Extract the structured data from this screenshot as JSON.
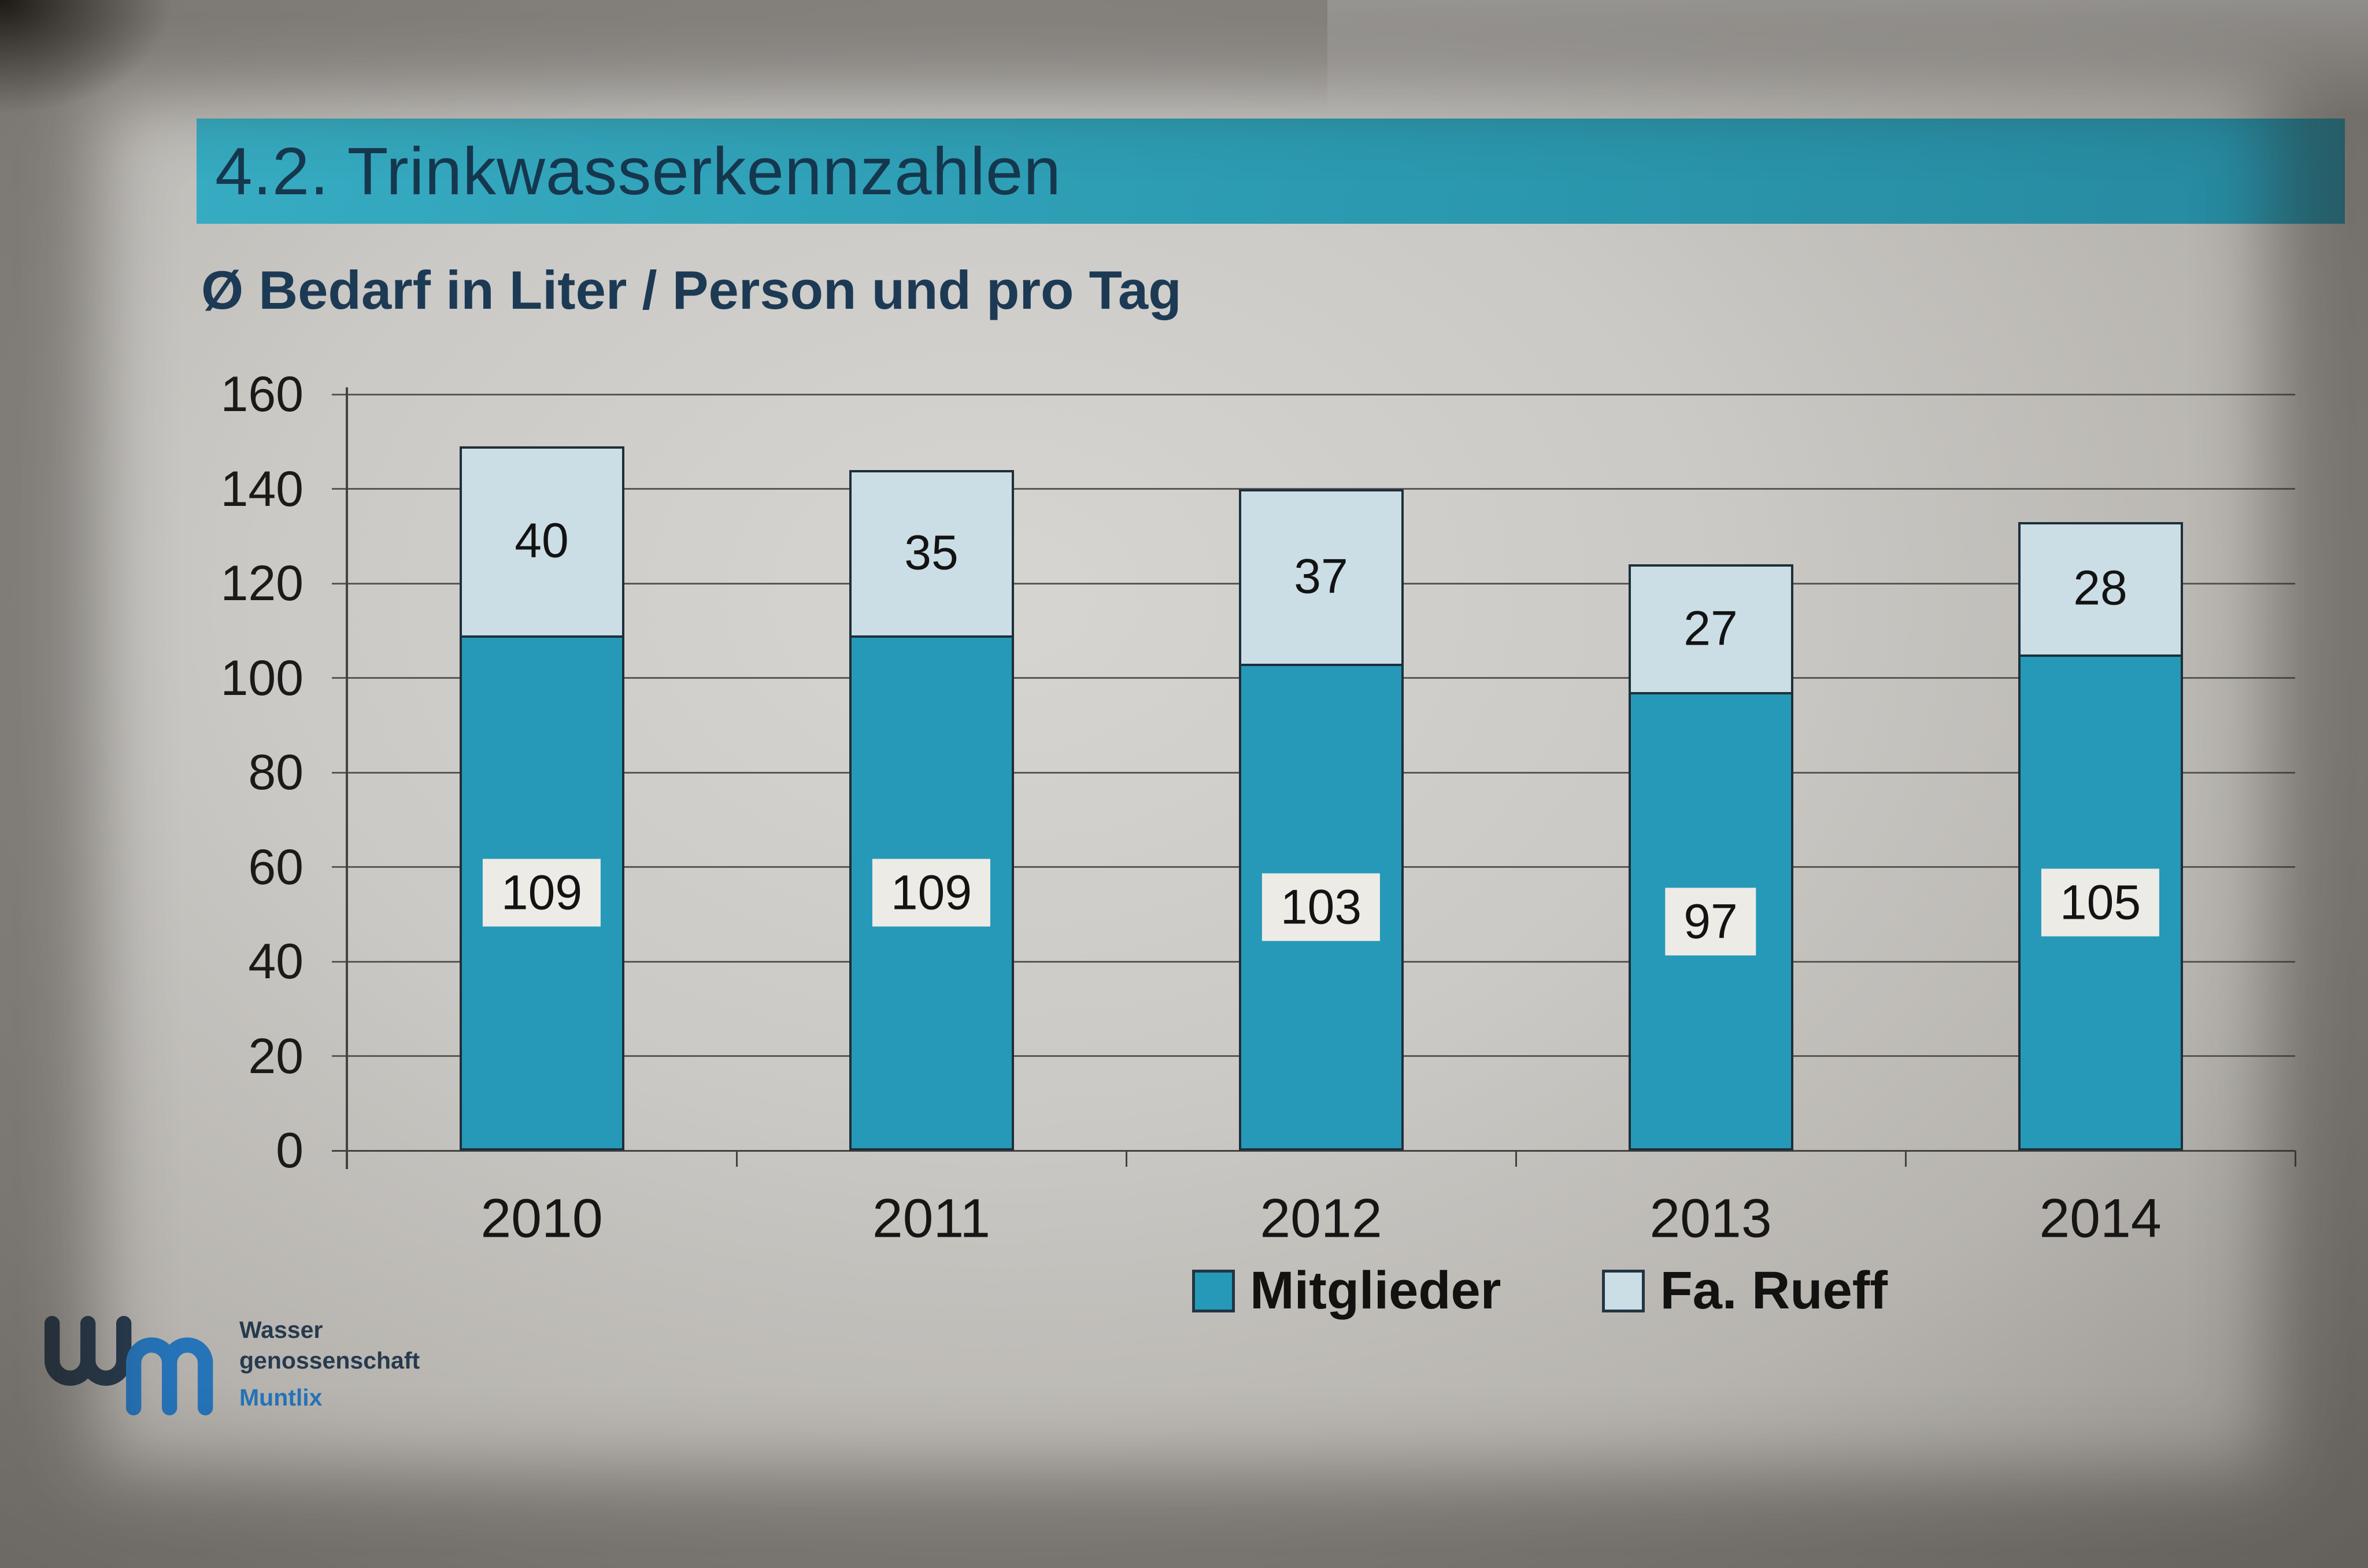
{
  "slide": {
    "title": "4.2. Trinkwasserkennzahlen",
    "subtitle": "Ø Bedarf in Liter / Person und pro Tag"
  },
  "chart_data": {
    "type": "bar",
    "stacked": true,
    "title": "Ø Bedarf in Liter / Person und pro Tag",
    "categories": [
      "2010",
      "2011",
      "2012",
      "2013",
      "2014"
    ],
    "series": [
      {
        "name": "Mitglieder",
        "color": "#2699b8",
        "values": [
          109,
          109,
          103,
          97,
          105
        ]
      },
      {
        "name": "Fa. Rueff",
        "color": "#cbdee6",
        "values": [
          40,
          35,
          37,
          27,
          28
        ]
      }
    ],
    "totals": [
      149,
      144,
      140,
      124,
      133
    ],
    "xlabel": "",
    "ylabel": "",
    "ylim": [
      0,
      160
    ],
    "yticks": [
      0,
      20,
      40,
      60,
      80,
      100,
      120,
      140,
      160
    ],
    "grid": true,
    "legend_position": "bottom-center",
    "bar_border_color": "#1e2f3a",
    "value_label_box_color": "#edebe6"
  },
  "logo": {
    "line1": "Wasser",
    "line2": "genossenschaft",
    "line3": "Muntlix"
  },
  "colors": {
    "banner": "#2b9ab1",
    "title_text": "#16384f",
    "subtitle_text": "#1d3a55",
    "gridline": "#5a5854",
    "axis": "#454340",
    "logo_navy": "#273a4e",
    "logo_blue": "#2673b8"
  }
}
